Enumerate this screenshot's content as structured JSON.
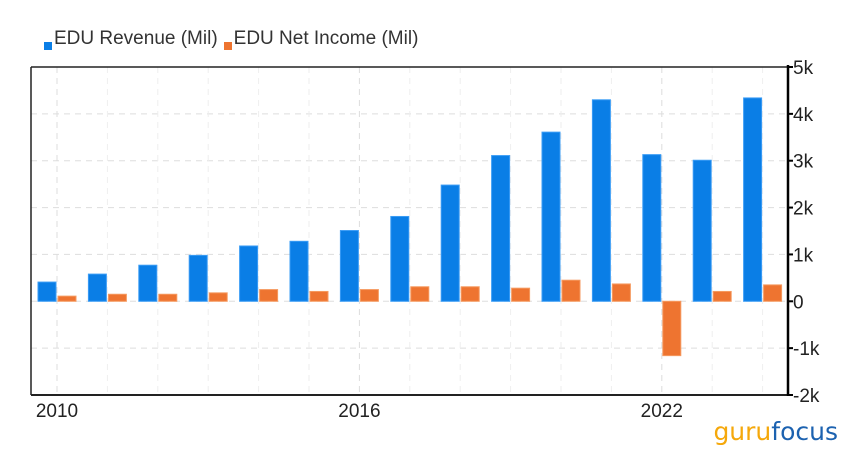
{
  "chart_data": {
    "type": "bar",
    "title": "",
    "xlabel": "",
    "ylabel": "",
    "categories": [
      2010,
      2011,
      2012,
      2013,
      2014,
      2015,
      2016,
      2017,
      2018,
      2019,
      2020,
      2021,
      2022,
      2023,
      2024
    ],
    "x_tick_labels": [
      "2010",
      "2016",
      "2022"
    ],
    "x_tick_values": [
      2010,
      2016,
      2022
    ],
    "y_tick_labels": [
      "5k",
      "4k",
      "3k",
      "2k",
      "1k",
      "0",
      "-1k",
      "-2k"
    ],
    "y_tick_values": [
      5000,
      4000,
      3000,
      2000,
      1000,
      0,
      -1000,
      -2000
    ],
    "ylim": [
      -2000,
      5000
    ],
    "grid": true,
    "legend_placement": "top-left",
    "series": [
      {
        "name": "EDU Revenue (Mil)",
        "color": "#0a7ee6",
        "values": [
          410,
          580,
          770,
          980,
          1180,
          1280,
          1510,
          1810,
          2480,
          3110,
          3610,
          4300,
          3130,
          3010,
          4340
        ]
      },
      {
        "name": "EDU Net Income (Mil)",
        "color": "#ee7430",
        "values": [
          110,
          150,
          150,
          180,
          250,
          210,
          250,
          310,
          310,
          280,
          450,
          370,
          -1160,
          210,
          350
        ]
      }
    ]
  },
  "logo": {
    "part1": "guru",
    "part2": "focus",
    "color1": "#f5a80b",
    "color2": "#1c62b0"
  }
}
